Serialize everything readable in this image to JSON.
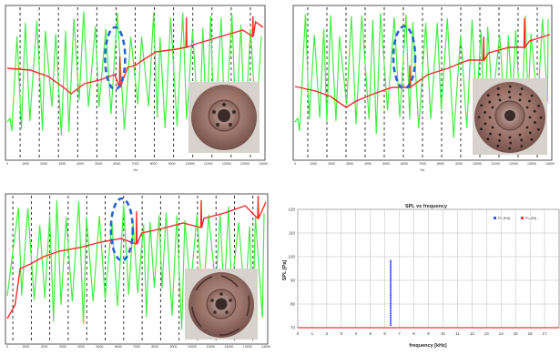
{
  "chart_data": [
    {
      "type": "line",
      "title": "",
      "xlabel": "Hz",
      "xlim": [
        0,
        14000
      ],
      "xticks": [
        0,
        1000,
        2000,
        3000,
        4000,
        5000,
        6000,
        7000,
        8000,
        9000,
        10000,
        11000,
        12000,
        13000,
        14000
      ],
      "xtick_labels": [
        "0",
        "1000",
        "2000",
        "3000",
        "4000",
        "5000",
        "6000",
        "7000",
        "8000",
        "9000",
        "10000",
        "11000",
        "12000",
        "13000",
        "14000"
      ],
      "dashed_markers_x": [
        700,
        1750,
        2800,
        3850,
        4900,
        5950,
        7000,
        8050,
        9100,
        10150,
        11200,
        12250,
        13300
      ],
      "highlight_ellipse_x": 5900,
      "series": [
        {
          "color": "#ff2a2a",
          "shape": "rising phase curve with resonance jumps"
        },
        {
          "color": "#44ee44",
          "shape": "oscillating spikes, high-frequency at left"
        }
      ],
      "inset": "solid brake disc photo"
    },
    {
      "type": "line",
      "title": "",
      "xlabel": "Hz",
      "xlim": [
        0,
        14000
      ],
      "xticks": [
        0,
        1000,
        2000,
        3000,
        4000,
        5000,
        6000,
        7000,
        8000,
        9000,
        10000,
        11000,
        12000,
        13000,
        14000
      ],
      "xtick_labels": [
        "0",
        "1000",
        "2000",
        "3000",
        "4000",
        "5000",
        "6000",
        "7000",
        "8000",
        "9000",
        "10000",
        "11000",
        "12000",
        "13000",
        "14000"
      ],
      "dashed_markers_x": [
        700,
        1750,
        2800,
        3850,
        4900,
        5950,
        7000,
        8050,
        9100,
        10150,
        11200,
        12250,
        13300
      ],
      "highlight_ellipse_x": 6000,
      "series": [
        {
          "color": "#ff2a2a",
          "shape": "rising phase curve with resonance jumps"
        },
        {
          "color": "#44ee44",
          "shape": "oscillating spikes"
        }
      ],
      "inset": "cross-drilled brake disc photo"
    },
    {
      "type": "line",
      "title": "",
      "xlabel": "",
      "xlim": [
        0,
        14000
      ],
      "xticks": [
        0,
        1000,
        2000,
        3000,
        4000,
        5000,
        6000,
        7000,
        8000,
        9000,
        10000,
        11000,
        12000,
        13000,
        14000
      ],
      "xtick_labels": [
        "0",
        "1000",
        "2000",
        "3000",
        "4000",
        "5000",
        "6000",
        "7000",
        "8000",
        "9000",
        "10000",
        "11000",
        "12000",
        "13000",
        "14000"
      ],
      "dashed_markers_x": [
        300,
        1300,
        2300,
        3300,
        4300,
        5300,
        6300,
        7300,
        8300,
        9300,
        10300,
        11300,
        12300,
        13300
      ],
      "highlight_ellipse_x": 6200,
      "series": [
        {
          "color": "#ff2a2a",
          "shape": "rising phase curve with resonance jumps"
        },
        {
          "color": "#44ee44",
          "shape": "dense oscillating spikes"
        }
      ],
      "inset": "slotted brake disc photo"
    },
    {
      "type": "scatter",
      "title": "SPL vs frequency",
      "xlabel": "frequency [kHz]",
      "ylabel": "SPL [Pa]",
      "xlim": [
        0,
        18
      ],
      "ylim": [
        70,
        120
      ],
      "xticks": [
        0,
        1,
        2,
        3,
        4,
        5,
        6,
        7,
        8,
        9,
        10,
        11,
        12,
        13,
        14,
        15,
        16,
        17
      ],
      "xtick_labels": [
        "0",
        "1",
        "2",
        "3",
        "4",
        "5",
        "6",
        "7",
        "8",
        "9",
        "10",
        "11",
        "12",
        "13",
        "14",
        "15",
        "16",
        "17"
      ],
      "yticks": [
        70,
        80,
        90,
        100,
        110,
        120
      ],
      "ytick_labels": [
        "70",
        "80",
        "90",
        "100",
        "110",
        "120"
      ],
      "grid": true,
      "legend_position": "top-right",
      "legend": [
        "FL (Pa)",
        "FL (Rt)"
      ],
      "series": [
        {
          "color": "#3355ff",
          "x": 6.4,
          "y_range": [
            71,
            99
          ]
        },
        {
          "color": "#ff3333",
          "baseline": 70
        }
      ]
    }
  ]
}
